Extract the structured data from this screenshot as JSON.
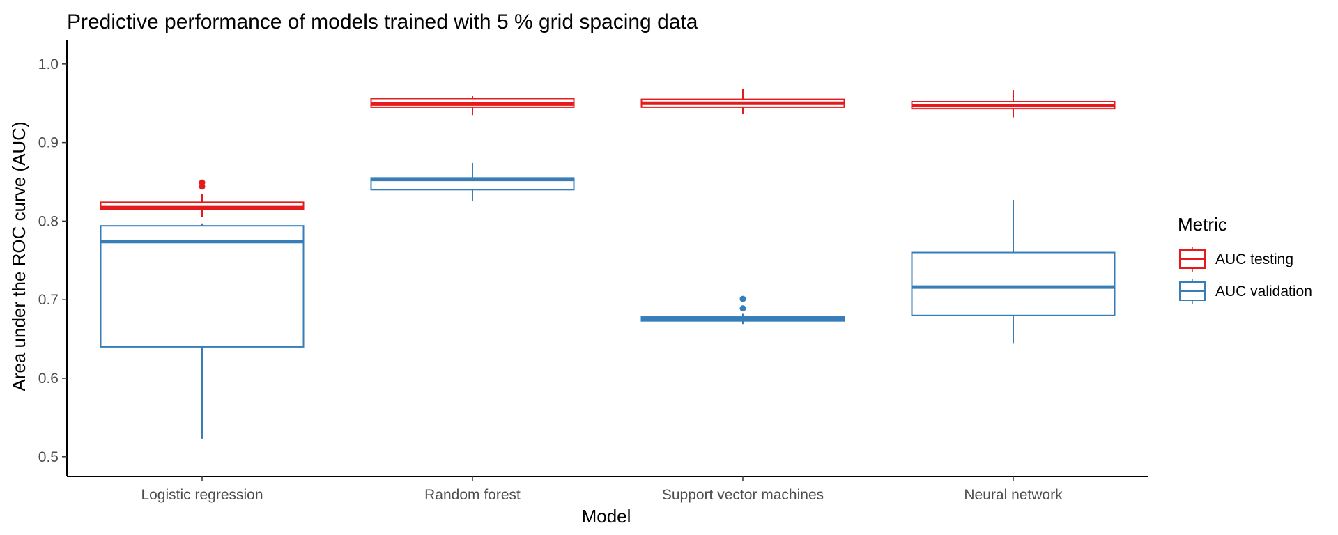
{
  "chart_data": {
    "type": "boxplot",
    "title": "Predictive performance of models trained with 5 % grid spacing data",
    "xlabel": "Model",
    "ylabel": "Area under the ROC curve (AUC)",
    "ylim": [
      0.475,
      1.03
    ],
    "yticks": [
      0.5,
      0.6,
      0.7,
      0.8,
      0.9,
      1.0
    ],
    "ytick_labels": [
      "0.5",
      "0.6",
      "0.7",
      "0.8",
      "0.9",
      "1.0"
    ],
    "grid": false,
    "legend_position": "right",
    "legend_title": "Metric",
    "categories": [
      "Logistic regression",
      "Random forest",
      "Support vector machines",
      "Neural network"
    ],
    "series": [
      {
        "name": "AUC testing",
        "color": "#e41a1c",
        "boxes": [
          {
            "whisker_low": 0.805,
            "q1": 0.815,
            "median": 0.818,
            "q3": 0.824,
            "whisker_high": 0.835,
            "outliers": [
              0.844,
              0.849
            ]
          },
          {
            "whisker_low": 0.935,
            "q1": 0.945,
            "median": 0.949,
            "q3": 0.956,
            "whisker_high": 0.959,
            "outliers": []
          },
          {
            "whisker_low": 0.936,
            "q1": 0.945,
            "median": 0.95,
            "q3": 0.955,
            "whisker_high": 0.968,
            "outliers": []
          },
          {
            "whisker_low": 0.932,
            "q1": 0.943,
            "median": 0.947,
            "q3": 0.952,
            "whisker_high": 0.967,
            "outliers": []
          }
        ]
      },
      {
        "name": "AUC validation",
        "color": "#377eb8",
        "boxes": [
          {
            "whisker_low": 0.523,
            "q1": 0.64,
            "median": 0.774,
            "q3": 0.794,
            "whisker_high": 0.797,
            "outliers": []
          },
          {
            "whisker_low": 0.826,
            "q1": 0.84,
            "median": 0.853,
            "q3": 0.855,
            "whisker_high": 0.874,
            "outliers": []
          },
          {
            "whisker_low": 0.669,
            "q1": 0.673,
            "median": 0.676,
            "q3": 0.678,
            "whisker_high": 0.682,
            "outliers": [
              0.689,
              0.701
            ]
          },
          {
            "whisker_low": 0.644,
            "q1": 0.68,
            "median": 0.716,
            "q3": 0.76,
            "whisker_high": 0.827,
            "outliers": []
          }
        ]
      }
    ]
  }
}
